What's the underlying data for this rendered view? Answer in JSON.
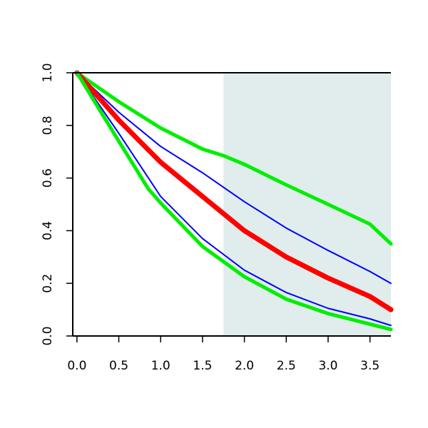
{
  "chart_data": {
    "type": "line",
    "title": "",
    "xlabel": "",
    "ylabel": "",
    "xlim": [
      -0.05,
      3.75
    ],
    "ylim": [
      0.0,
      1.0
    ],
    "x_ticks": [
      0.0,
      0.5,
      1.0,
      1.5,
      2.0,
      2.5,
      3.0,
      3.5
    ],
    "x_tick_labels": [
      "0.0",
      "0.5",
      "1.0",
      "1.5",
      "2.0",
      "2.5",
      "3.0",
      "3.5"
    ],
    "y_ticks": [
      0.0,
      0.2,
      0.4,
      0.6,
      0.8,
      1.0
    ],
    "y_tick_labels": [
      "0.0",
      "0.2",
      "0.4",
      "0.6",
      "0.8",
      "1.0"
    ],
    "grid": false,
    "shaded_region": {
      "x_start": 1.75,
      "x_end": 3.75,
      "color": "#e0edec"
    },
    "series": [
      {
        "color": "#00ee00",
        "weight": "thick",
        "x": [
          0.0,
          0.5,
          1.0,
          1.5,
          1.75,
          2.0,
          2.5,
          3.0,
          3.5,
          3.75
        ],
        "y": [
          1.0,
          0.89,
          0.79,
          0.71,
          0.685,
          0.652,
          0.574,
          0.5,
          0.425,
          0.35
        ]
      },
      {
        "color": "#0000ff",
        "weight": "thin",
        "x": [
          0.0,
          0.5,
          1.0,
          1.5,
          2.0,
          2.5,
          3.0,
          3.5,
          3.75
        ],
        "y": [
          1.0,
          0.85,
          0.72,
          0.62,
          0.51,
          0.41,
          0.325,
          0.245,
          0.2
        ]
      },
      {
        "color": "#ff0000",
        "weight": "thickest",
        "x": [
          0.0,
          0.5,
          1.0,
          1.5,
          2.0,
          2.5,
          3.0,
          3.5,
          3.75
        ],
        "y": [
          1.0,
          0.82,
          0.66,
          0.53,
          0.4,
          0.3,
          0.22,
          0.15,
          0.1
        ]
      },
      {
        "color": "#0000ff",
        "weight": "thin",
        "x": [
          0.0,
          0.5,
          1.0,
          1.5,
          2.0,
          2.5,
          3.0,
          3.5,
          3.75
        ],
        "y": [
          1.0,
          0.77,
          0.53,
          0.37,
          0.25,
          0.165,
          0.105,
          0.065,
          0.04
        ]
      },
      {
        "color": "#00ee00",
        "weight": "thick",
        "x": [
          0.0,
          0.5,
          0.85,
          1.0,
          1.5,
          2.0,
          2.5,
          3.0,
          3.5,
          3.75
        ],
        "y": [
          1.0,
          0.74,
          0.56,
          0.505,
          0.34,
          0.225,
          0.14,
          0.085,
          0.045,
          0.025
        ]
      }
    ]
  }
}
